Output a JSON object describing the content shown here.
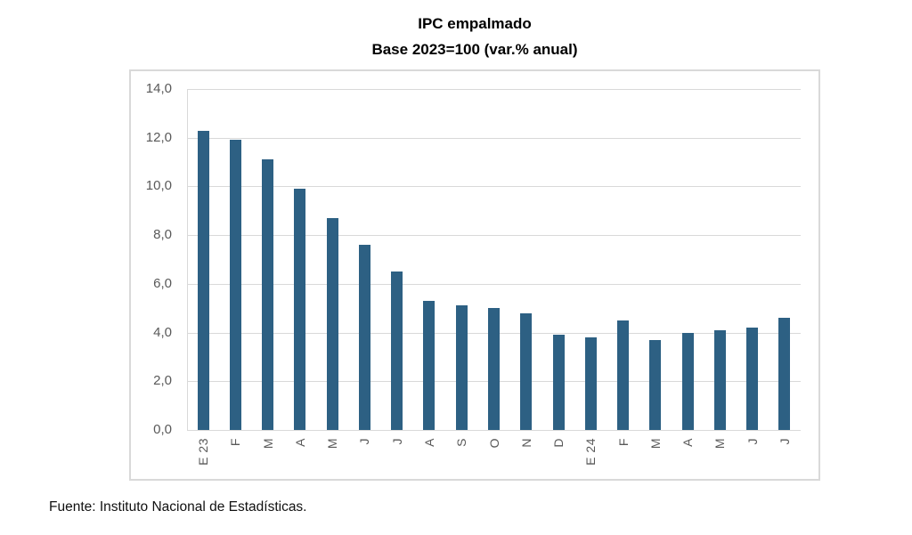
{
  "title": {
    "line1": "IPC empalmado",
    "line2": "Base 2023=100 (var.% anual)"
  },
  "source_note": "Fuente: Instituto Nacional de Estadísticas.",
  "colors": {
    "bar": "#2D6083",
    "gridline": "#D9D9D9",
    "frame_border": "#D9D9D9",
    "axis_text": "#595959",
    "title_text": "#000000",
    "background": "#FFFFFF"
  },
  "chart_data": {
    "type": "bar",
    "title": "IPC empalmado",
    "subtitle": "Base 2023=100 (var.% anual)",
    "categories": [
      "E 23",
      "F",
      "M",
      "A",
      "M",
      "J",
      "J",
      "A",
      "S",
      "O",
      "N",
      "D",
      "E 24",
      "F",
      "M",
      "A",
      "M",
      "J",
      "J"
    ],
    "values": [
      12.3,
      11.9,
      11.1,
      9.9,
      8.7,
      7.6,
      6.5,
      5.3,
      5.1,
      5.0,
      4.8,
      3.9,
      3.8,
      4.5,
      3.7,
      4.0,
      4.1,
      4.2,
      4.6
    ],
    "xlabel": "",
    "ylabel": "",
    "ylim": [
      0,
      14
    ],
    "ytick_step": 2,
    "ytick_labels": [
      "0,0",
      "2,0",
      "4,0",
      "6,0",
      "8,0",
      "10,0",
      "12,0",
      "14,0"
    ],
    "grid": true,
    "legend": "none",
    "x_labels_rotated_degrees": 90
  }
}
